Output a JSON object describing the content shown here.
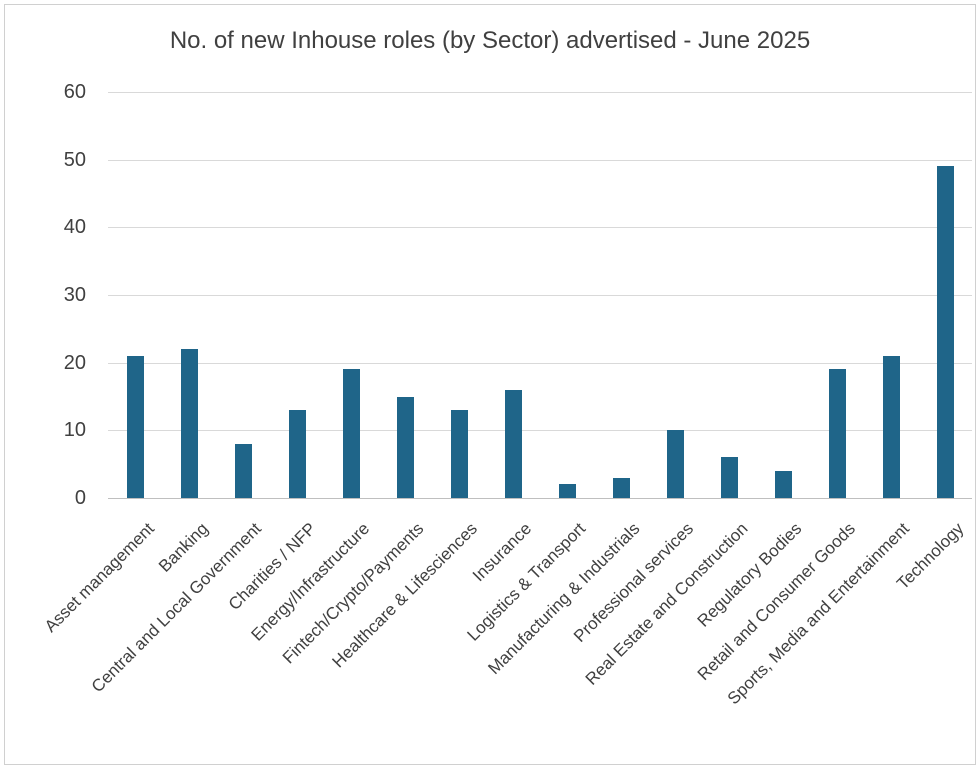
{
  "colors": {
    "bar": "#1f6589",
    "grid": "#d9d9d9",
    "axis": "#bfbfbf",
    "text": "#404040",
    "frame_border": "#d0d0d0",
    "background": "#ffffff"
  },
  "chart_data": {
    "type": "bar",
    "title": "No. of new Inhouse roles (by Sector) advertised - June 2025",
    "xlabel": "",
    "ylabel": "",
    "ylim": [
      0,
      60
    ],
    "yticks": [
      0,
      10,
      20,
      30,
      40,
      50,
      60
    ],
    "grid": "horizontal",
    "legend": "none",
    "x_tick_rotation": 45,
    "categories": [
      "Asset management",
      "Banking",
      "Central and Local Government",
      "Charities / NFP",
      "Energy/Infrastructure",
      "Fintech/Crypto/Payments",
      "Healthcare & Lifesciences",
      "Insurance",
      "Logistics & Transport",
      "Manufacturing & Industrials",
      "Professional services",
      "Real Estate and Construction",
      "Regulatory Bodies",
      "Retail and Consumer Goods",
      "Sports, Media and Entertainment",
      "Technology"
    ],
    "values": [
      21,
      22,
      8,
      13,
      19,
      15,
      13,
      16,
      2,
      3,
      10,
      6,
      4,
      19,
      21,
      49
    ]
  }
}
